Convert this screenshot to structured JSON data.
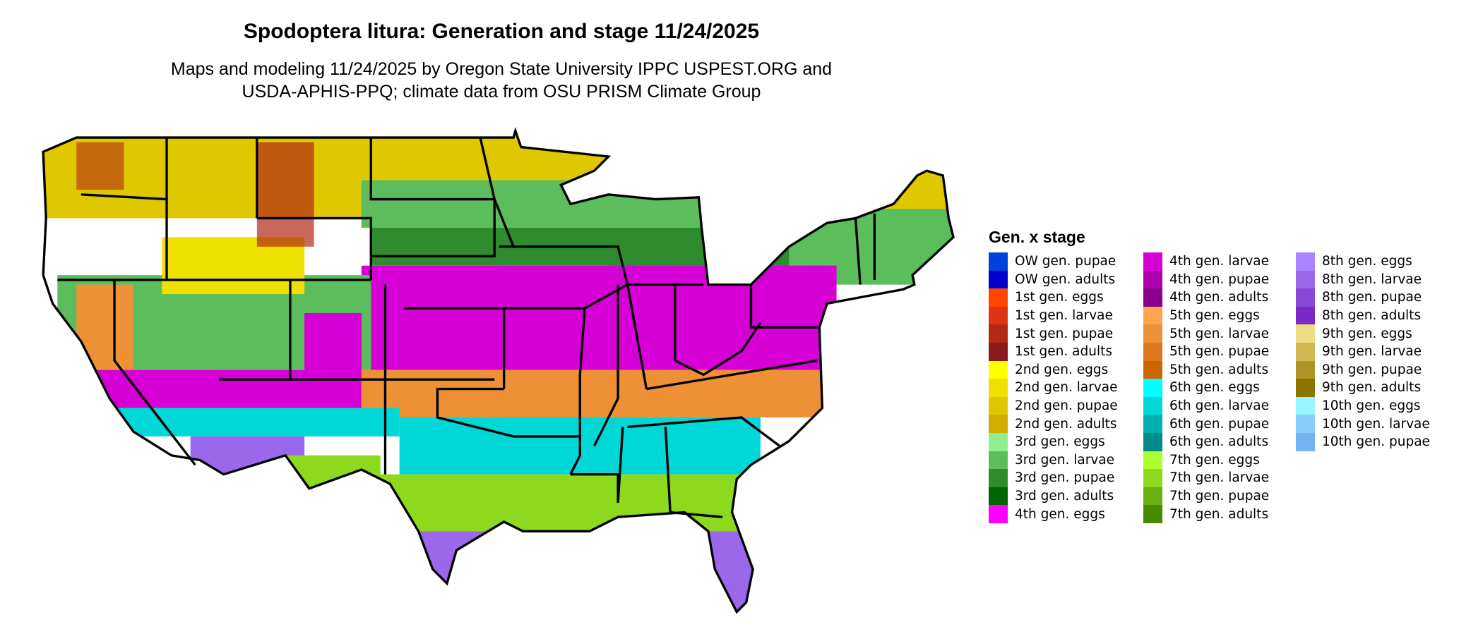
{
  "title": "Spodoptera litura: Generation and stage 11/24/2025",
  "subtitle_lines": [
    "Maps and modeling 11/24/2025 by Oregon State University IPPC USPEST.ORG and",
    "USDA-APHIS-PPQ; climate data from OSU PRISM Climate Group"
  ],
  "map": {
    "region": "contiguous-united-states",
    "state_borders": true,
    "border_color": "#000000"
  },
  "legend": {
    "title": "Gen. x stage",
    "columns": [
      [
        {
          "label": "OW gen. pupae",
          "color": "#0040DD"
        },
        {
          "label": "OW gen. adults",
          "color": "#0000CC"
        },
        {
          "label": "1st gen. eggs",
          "color": "#FF4500"
        },
        {
          "label": "1st gen. larvae",
          "color": "#DD3510"
        },
        {
          "label": "1st gen. pupae",
          "color": "#B22A15"
        },
        {
          "label": "1st gen. adults",
          "color": "#8B1A1A"
        },
        {
          "label": "2nd gen. eggs",
          "color": "#FFFF00"
        },
        {
          "label": "2nd gen. larvae",
          "color": "#EEE000"
        },
        {
          "label": "2nd gen. pupae",
          "color": "#E0C800"
        },
        {
          "label": "2nd gen. adults",
          "color": "#D0AD00"
        },
        {
          "label": "3rd gen. eggs",
          "color": "#90EE90"
        },
        {
          "label": "3rd gen. larvae",
          "color": "#5CBD5C"
        },
        {
          "label": "3rd gen. pupae",
          "color": "#2E8B2E"
        },
        {
          "label": "3rd gen. adults",
          "color": "#006400"
        },
        {
          "label": "4th gen. eggs",
          "color": "#FF00FF"
        }
      ],
      [
        {
          "label": "4th gen. larvae",
          "color": "#D600D6"
        },
        {
          "label": "4th gen. pupae",
          "color": "#AE00AE"
        },
        {
          "label": "4th gen. adults",
          "color": "#8B008B"
        },
        {
          "label": "5th gen. eggs",
          "color": "#FFA54F"
        },
        {
          "label": "5th gen. larvae",
          "color": "#EE9035"
        },
        {
          "label": "5th gen. pupae",
          "color": "#DD781C"
        },
        {
          "label": "5th gen. adults",
          "color": "#CD6600"
        },
        {
          "label": "6th gen. eggs",
          "color": "#00FFFF"
        },
        {
          "label": "6th gen. larvae",
          "color": "#00D8D8"
        },
        {
          "label": "6th gen. pupae",
          "color": "#00B0B0"
        },
        {
          "label": "6th gen. adults",
          "color": "#008B8B"
        },
        {
          "label": "7th gen. eggs",
          "color": "#ADFF2F"
        },
        {
          "label": "7th gen. larvae",
          "color": "#8CD91E"
        },
        {
          "label": "7th gen. pupae",
          "color": "#68B010"
        },
        {
          "label": "7th gen. adults",
          "color": "#458B00"
        }
      ],
      [
        {
          "label": "8th gen. eggs",
          "color": "#AB82FF"
        },
        {
          "label": "8th gen. larvae",
          "color": "#9B68EC"
        },
        {
          "label": "8th gen. pupae",
          "color": "#8A48D9"
        },
        {
          "label": "8th gen. adults",
          "color": "#7A28C8"
        },
        {
          "label": "9th gen. eggs",
          "color": "#EEDC82"
        },
        {
          "label": "9th gen. larvae",
          "color": "#CFB852"
        },
        {
          "label": "9th gen. pupae",
          "color": "#AE9428"
        },
        {
          "label": "9th gen. adults",
          "color": "#8B7300"
        },
        {
          "label": "10th gen. eggs",
          "color": "#98F5FF"
        },
        {
          "label": "10th gen. larvae",
          "color": "#87CEFA"
        },
        {
          "label": "10th gen. pupae",
          "color": "#75B2F2"
        }
      ]
    ]
  }
}
